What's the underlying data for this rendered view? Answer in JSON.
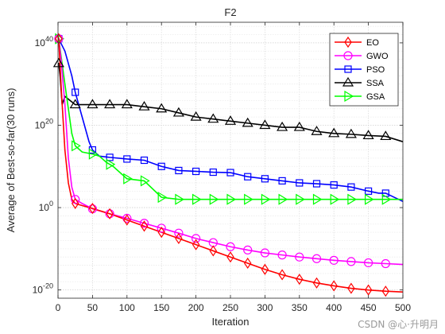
{
  "chart_data": {
    "type": "line",
    "title": "F2",
    "xlabel": "Iteration",
    "ylabel": "Average of Best-so-far(30 runs)",
    "yscale": "log",
    "xlim": [
      0,
      500
    ],
    "ylim_exp": [
      -22,
      45
    ],
    "x_ticks": [
      0,
      50,
      100,
      150,
      200,
      250,
      300,
      350,
      400,
      450,
      500
    ],
    "y_ticks_exp": [
      -20,
      0,
      20,
      40
    ],
    "y_tick_labels": [
      {
        "base": "10",
        "exp": "-20"
      },
      {
        "base": "10",
        "exp": "0"
      },
      {
        "base": "10",
        "exp": "20"
      },
      {
        "base": "10",
        "exp": "40"
      }
    ],
    "grid": true,
    "legend_position": "top-right",
    "series": [
      {
        "name": "EO",
        "color": "#ff0000",
        "marker": "diamond",
        "x": [
          0,
          1,
          5,
          10,
          15,
          20,
          25,
          35,
          50,
          75,
          100,
          125,
          150,
          175,
          200,
          225,
          250,
          275,
          300,
          325,
          350,
          375,
          400,
          425,
          450,
          475,
          500
        ],
        "exp": [
          41.5,
          41,
          28,
          14,
          6,
          2,
          1,
          0.5,
          -0.2,
          -1.5,
          -3,
          -4.5,
          -6,
          -7.5,
          -9,
          -10.5,
          -12,
          -13.5,
          -15,
          -16.3,
          -17.4,
          -18.3,
          -19,
          -19.6,
          -20,
          -20.3,
          -20.5
        ]
      },
      {
        "name": "GWO",
        "color": "#ff00ff",
        "marker": "circle",
        "x": [
          0,
          1,
          5,
          10,
          15,
          20,
          25,
          35,
          50,
          75,
          100,
          125,
          150,
          175,
          200,
          225,
          250,
          275,
          300,
          325,
          350,
          375,
          400,
          425,
          450,
          475,
          500
        ],
        "exp": [
          41.5,
          41,
          35,
          25,
          12,
          5,
          2,
          1,
          -0.3,
          -1.5,
          -2.6,
          -3.8,
          -5,
          -6.2,
          -7.5,
          -8.5,
          -9.5,
          -10.3,
          -11,
          -11.5,
          -12,
          -12.4,
          -12.8,
          -13.1,
          -13.4,
          -13.6,
          -13.8
        ]
      },
      {
        "name": "PSO",
        "color": "#0000ff",
        "marker": "square",
        "x": [
          0,
          1,
          10,
          20,
          25,
          35,
          45,
          50,
          60,
          75,
          100,
          125,
          150,
          175,
          200,
          225,
          250,
          275,
          300,
          325,
          350,
          375,
          400,
          425,
          450,
          465,
          475,
          500
        ],
        "exp": [
          41.5,
          41,
          38,
          32,
          28,
          22,
          16,
          14,
          12.5,
          12.2,
          11.8,
          11.5,
          10,
          9,
          8.8,
          8.6,
          8.5,
          7.5,
          7,
          6.5,
          6,
          5.8,
          5.5,
          5,
          4,
          3.5,
          3.5,
          1.5
        ]
      },
      {
        "name": "SSA",
        "color": "#000000",
        "marker": "triangle-up",
        "x": [
          0,
          1,
          3,
          6,
          10,
          25,
          50,
          75,
          100,
          125,
          150,
          175,
          200,
          225,
          250,
          275,
          300,
          325,
          350,
          375,
          400,
          425,
          450,
          475,
          500
        ],
        "exp": [
          35,
          35,
          32,
          25,
          27,
          25,
          25,
          25,
          25,
          24.5,
          24,
          23,
          22,
          21.5,
          21,
          20.5,
          20,
          19.5,
          19.5,
          18.5,
          18,
          17.8,
          17.5,
          17.3,
          16
        ]
      },
      {
        "name": "GSA",
        "color": "#00ff00",
        "marker": "triangle-right",
        "x": [
          0,
          1,
          10,
          20,
          25,
          35,
          50,
          60,
          70,
          80,
          100,
          125,
          150,
          175,
          200,
          225,
          250,
          275,
          300,
          325,
          350,
          375,
          400,
          425,
          450,
          475,
          500
        ],
        "exp": [
          41.5,
          41,
          30,
          18,
          15,
          13.5,
          13,
          12.5,
          11,
          10,
          7,
          6.5,
          2.5,
          2,
          2,
          2,
          2,
          2,
          2,
          2,
          2,
          2,
          2,
          2,
          2,
          2,
          2
        ]
      }
    ]
  },
  "watermark": "CSDN @心·升明月"
}
